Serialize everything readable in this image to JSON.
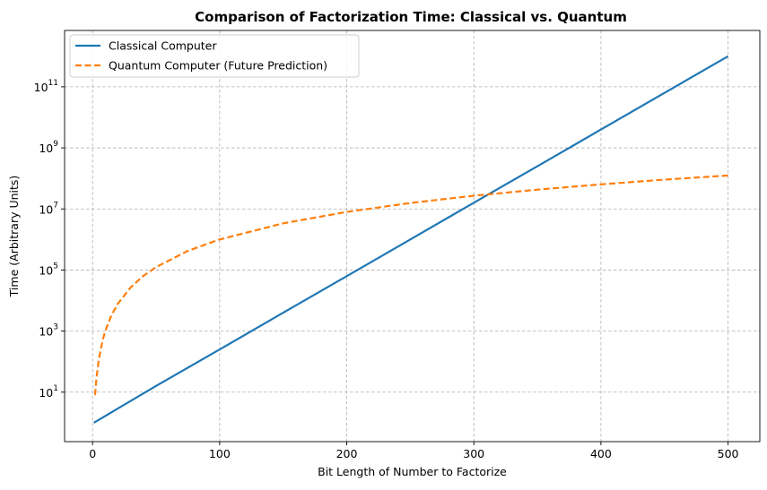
{
  "chart_data": {
    "type": "line",
    "title": "Comparison of Factorization Time: Classical vs. Quantum",
    "xlabel": "Bit Length of Number to Factorize",
    "ylabel": "Time (Arbitrary Units)",
    "xlim": [
      -22,
      525
    ],
    "ylim": [
      0.24,
      7000000000000
    ],
    "yscale": "log",
    "grid": true,
    "legend_position": "top-left",
    "x_ticks": [
      0,
      100,
      200,
      300,
      400,
      500
    ],
    "x_tick_labels": [
      "0",
      "100",
      "200",
      "300",
      "400",
      "500"
    ],
    "y_ticks": [
      10,
      1000,
      100000,
      10000000,
      1000000000,
      100000000000
    ],
    "y_tick_labels": [
      {
        "base": "10",
        "exp": "1"
      },
      {
        "base": "10",
        "exp": "3"
      },
      {
        "base": "10",
        "exp": "5"
      },
      {
        "base": "10",
        "exp": "7"
      },
      {
        "base": "10",
        "exp": "9"
      },
      {
        "base": "10",
        "exp": "11"
      }
    ],
    "series": [
      {
        "name": "Classical Computer",
        "color": "#1f77b4",
        "style": "solid",
        "x": [
          1,
          50,
          100,
          150,
          200,
          250,
          300,
          350,
          400,
          450,
          500
        ],
        "y": [
          1,
          16,
          250,
          4000,
          63000,
          1000000,
          16000000,
          250000000,
          4000000000,
          63000000000,
          1000000000000
        ]
      },
      {
        "name": "Quantum Computer (Future Prediction)",
        "color": "#ff7f0e",
        "style": "dashed",
        "x": [
          2,
          3,
          5,
          8,
          10,
          15,
          20,
          30,
          40,
          50,
          75,
          100,
          150,
          200,
          250,
          300,
          350,
          400,
          450,
          500
        ],
        "y": [
          8,
          27,
          125,
          512,
          1000,
          3375,
          8000,
          27000,
          64000,
          125000,
          421875,
          1000000,
          3375000,
          8000000,
          15625000,
          27000000,
          42875000,
          64000000,
          91125000,
          125000000
        ]
      }
    ]
  }
}
